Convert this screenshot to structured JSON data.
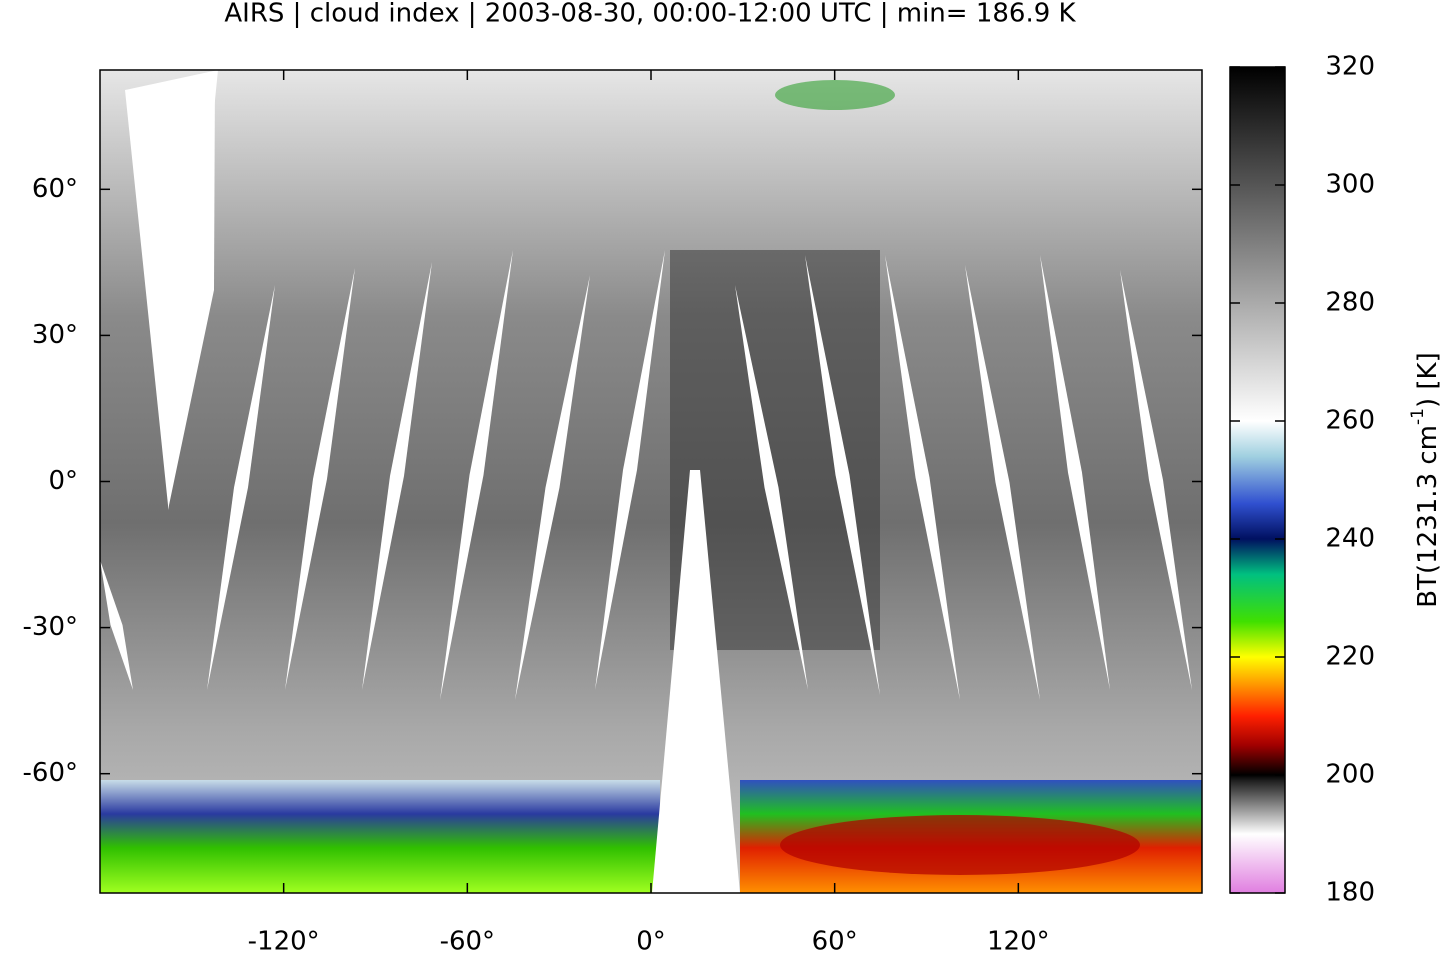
{
  "chart_data": {
    "type": "map",
    "title": "AIRS | cloud index | 2003-08-30, 00:00-12:00 UTC | min= 186.9 K",
    "xlim": [
      -180,
      180
    ],
    "ylim": [
      -84.5,
      84.5
    ],
    "xticks": [
      {
        "value": -120,
        "label": "-120°"
      },
      {
        "value": -60,
        "label": "-60°"
      },
      {
        "value": 0,
        "label": "0°"
      },
      {
        "value": 60,
        "label": "60°"
      },
      {
        "value": 120,
        "label": "120°"
      }
    ],
    "yticks": [
      {
        "value": -60,
        "label": "-60°"
      },
      {
        "value": -30,
        "label": "-30°"
      },
      {
        "value": 0,
        "label": "0°"
      },
      {
        "value": 30,
        "label": "30°"
      },
      {
        "value": 60,
        "label": "60°"
      }
    ],
    "colorbar": {
      "lim": [
        180,
        320
      ],
      "ticks": [
        180,
        200,
        220,
        240,
        260,
        280,
        300,
        320
      ],
      "label": {
        "text": "BT(1231.3 cm",
        "superscript": "-1",
        "suffix": ") [K]"
      },
      "colormap": [
        {
          "value": 180,
          "color": "#e07ee0"
        },
        {
          "value": 190,
          "color": "#ffffff"
        },
        {
          "value": 199,
          "color": "#202020"
        },
        {
          "value": 200,
          "color": "#000000"
        },
        {
          "value": 205,
          "color": "#a00000"
        },
        {
          "value": 210,
          "color": "#ff2000"
        },
        {
          "value": 215,
          "color": "#ff9000"
        },
        {
          "value": 220,
          "color": "#ffff00"
        },
        {
          "value": 226,
          "color": "#40e000"
        },
        {
          "value": 234,
          "color": "#00c080"
        },
        {
          "value": 240,
          "color": "#001060"
        },
        {
          "value": 246,
          "color": "#3050d0"
        },
        {
          "value": 254,
          "color": "#a0d0e0"
        },
        {
          "value": 260,
          "color": "#ffffff"
        },
        {
          "value": 320,
          "color": "#000000"
        }
      ]
    }
  }
}
